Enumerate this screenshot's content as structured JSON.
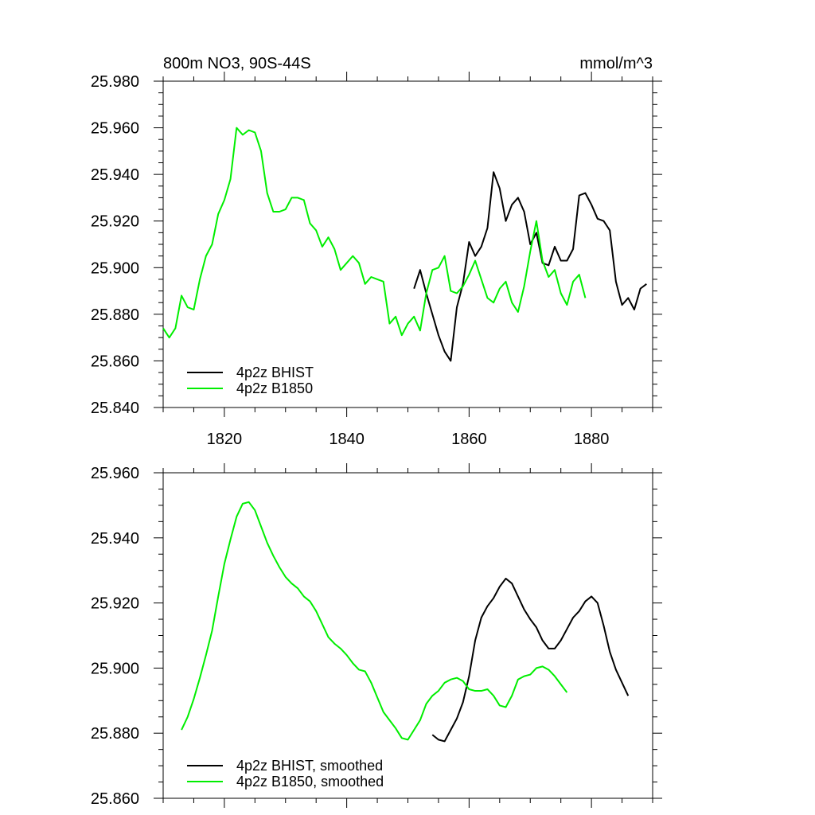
{
  "chart_data": [
    {
      "type": "line",
      "title": "800m NO3, 90S-44S",
      "units": "mmol/m^3",
      "xlim": [
        1810,
        1890
      ],
      "ylim": [
        25.84,
        25.98
      ],
      "x_ticks": [
        "1820",
        "1840",
        "1860",
        "1880"
      ],
      "y_ticks": [
        "25.840",
        "25.860",
        "25.880",
        "25.900",
        "25.920",
        "25.940",
        "25.960",
        "25.980"
      ],
      "legend_position": "bottom-left",
      "grid": false,
      "series": [
        {
          "name": "4p2z BHIST",
          "color": "#000000",
          "x": [
            1851,
            1852,
            1853,
            1854,
            1855,
            1856,
            1857,
            1858,
            1859,
            1860,
            1861,
            1862,
            1863,
            1864,
            1865,
            1866,
            1867,
            1868,
            1869,
            1870,
            1871,
            1872,
            1873,
            1874,
            1875,
            1876,
            1877,
            1878,
            1879,
            1880,
            1881,
            1882,
            1883,
            1884,
            1885,
            1886,
            1887,
            1888,
            1889
          ],
          "y": [
            25.891,
            25.899,
            25.889,
            25.88,
            25.871,
            25.864,
            25.86,
            25.883,
            25.893,
            25.911,
            25.905,
            25.909,
            25.917,
            25.941,
            25.934,
            25.92,
            25.927,
            25.93,
            25.924,
            25.91,
            25.915,
            25.902,
            25.901,
            25.909,
            25.903,
            25.903,
            25.908,
            25.931,
            25.932,
            25.927,
            25.921,
            25.92,
            25.916,
            25.894,
            25.884,
            25.887,
            25.882,
            25.891,
            25.893
          ]
        },
        {
          "name": "4p2z B1850",
          "color": "#00ee00",
          "x": [
            1810,
            1811,
            1812,
            1813,
            1814,
            1815,
            1816,
            1817,
            1818,
            1819,
            1820,
            1821,
            1822,
            1823,
            1824,
            1825,
            1826,
            1827,
            1828,
            1829,
            1830,
            1831,
            1832,
            1833,
            1834,
            1835,
            1836,
            1837,
            1838,
            1839,
            1840,
            1841,
            1842,
            1843,
            1844,
            1845,
            1846,
            1847,
            1848,
            1849,
            1850,
            1851,
            1852,
            1853,
            1854,
            1855,
            1856,
            1857,
            1858,
            1859,
            1860,
            1861,
            1862,
            1863,
            1864,
            1865,
            1866,
            1867,
            1868,
            1869,
            1870,
            1871,
            1872,
            1873,
            1874,
            1875,
            1876,
            1877,
            1878,
            1879
          ],
          "y": [
            25.874,
            25.87,
            25.874,
            25.888,
            25.883,
            25.882,
            25.895,
            25.905,
            25.91,
            25.923,
            25.929,
            25.938,
            25.96,
            25.957,
            25.959,
            25.958,
            25.95,
            25.932,
            25.924,
            25.924,
            25.925,
            25.93,
            25.93,
            25.929,
            25.919,
            25.916,
            25.909,
            25.913,
            25.908,
            25.899,
            25.902,
            25.905,
            25.902,
            25.893,
            25.896,
            25.895,
            25.894,
            25.876,
            25.879,
            25.871,
            25.876,
            25.879,
            25.873,
            25.889,
            25.899,
            25.9,
            25.905,
            25.89,
            25.889,
            25.892,
            25.897,
            25.903,
            25.895,
            25.887,
            25.885,
            25.891,
            25.894,
            25.885,
            25.881,
            25.892,
            25.907,
            25.92,
            25.903,
            25.896,
            25.899,
            25.889,
            25.884,
            25.894,
            25.897,
            25.887
          ]
        }
      ]
    },
    {
      "type": "line",
      "xlim": [
        1810,
        1890
      ],
      "ylim": [
        25.86,
        25.96
      ],
      "y_ticks": [
        "25.860",
        "25.880",
        "25.900",
        "25.920",
        "25.940",
        "25.960"
      ],
      "legend_position": "bottom-left",
      "grid": false,
      "series": [
        {
          "name": "4p2z BHIST, smoothed",
          "color": "#000000",
          "x": [
            1854,
            1855,
            1856,
            1857,
            1858,
            1859,
            1860,
            1861,
            1862,
            1863,
            1864,
            1865,
            1866,
            1867,
            1868,
            1869,
            1870,
            1871,
            1872,
            1873,
            1874,
            1875,
            1876,
            1877,
            1878,
            1879,
            1880,
            1881,
            1882,
            1883,
            1884,
            1885,
            1886
          ],
          "y": [
            25.8795,
            25.878,
            25.8775,
            25.881,
            25.8845,
            25.8895,
            25.8975,
            25.9085,
            25.9155,
            25.919,
            25.9215,
            25.925,
            25.9275,
            25.926,
            25.922,
            25.918,
            25.915,
            25.9125,
            25.9085,
            25.906,
            25.906,
            25.9085,
            25.912,
            25.9155,
            25.9175,
            25.9205,
            25.922,
            25.92,
            25.913,
            25.905,
            25.8995,
            25.8955,
            25.8915
          ]
        },
        {
          "name": "4p2z B1850, smoothed",
          "color": "#00ee00",
          "x": [
            1813,
            1814,
            1815,
            1816,
            1817,
            1818,
            1819,
            1820,
            1821,
            1822,
            1823,
            1824,
            1825,
            1826,
            1827,
            1828,
            1829,
            1830,
            1831,
            1832,
            1833,
            1834,
            1835,
            1836,
            1837,
            1838,
            1839,
            1840,
            1841,
            1842,
            1843,
            1844,
            1845,
            1846,
            1847,
            1848,
            1849,
            1850,
            1851,
            1852,
            1853,
            1854,
            1855,
            1856,
            1857,
            1858,
            1859,
            1860,
            1861,
            1862,
            1863,
            1864,
            1865,
            1866,
            1867,
            1868,
            1869,
            1870,
            1871,
            1872,
            1873,
            1874,
            1875,
            1876
          ],
          "y": [
            25.881,
            25.885,
            25.8905,
            25.897,
            25.904,
            25.9115,
            25.922,
            25.932,
            25.9395,
            25.9465,
            25.9505,
            25.951,
            25.9485,
            25.9435,
            25.9385,
            25.9345,
            25.931,
            25.928,
            25.926,
            25.9245,
            25.922,
            25.9205,
            25.9175,
            25.9135,
            25.9095,
            25.9075,
            25.906,
            25.904,
            25.9015,
            25.8995,
            25.899,
            25.8955,
            25.891,
            25.8865,
            25.884,
            25.8815,
            25.8785,
            25.878,
            25.881,
            25.884,
            25.889,
            25.8915,
            25.893,
            25.8955,
            25.8965,
            25.897,
            25.896,
            25.8935,
            25.893,
            25.893,
            25.8935,
            25.8915,
            25.8885,
            25.888,
            25.8915,
            25.8965,
            25.8975,
            25.898,
            25.9,
            25.9005,
            25.8995,
            25.8975,
            25.895,
            25.8925
          ]
        }
      ]
    }
  ]
}
